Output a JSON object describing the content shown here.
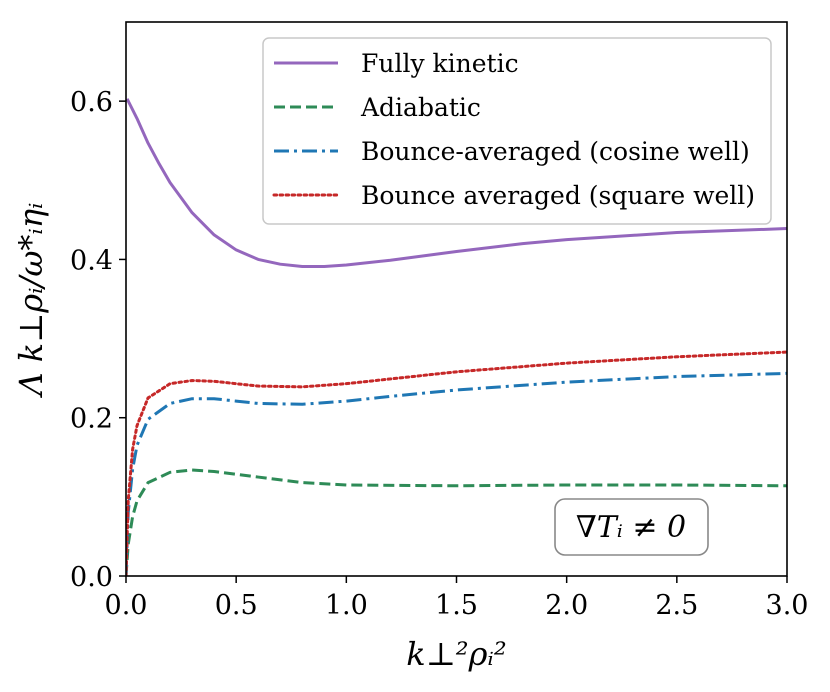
{
  "chart_data": {
    "type": "line",
    "title": "",
    "xlabel": "k⊥²ρᵢ²",
    "ylabel": "Λ k⊥ρᵢ/ω*ᵢηᵢ",
    "xlim": [
      0.0,
      3.0
    ],
    "ylim": [
      0.0,
      0.7
    ],
    "xticks": [
      "0.0",
      "0.5",
      "1.0",
      "1.5",
      "2.0",
      "2.5",
      "3.0"
    ],
    "yticks": [
      "0.0",
      "0.2",
      "0.4",
      "0.6"
    ],
    "grid": false,
    "legend_position": "top-right",
    "annotation": "∇Tᵢ ≠ 0",
    "series": [
      {
        "name": "Fully kinetic",
        "color": "#9467bd",
        "style": "solid",
        "x": [
          0.005,
          0.05,
          0.1,
          0.15,
          0.2,
          0.3,
          0.4,
          0.5,
          0.6,
          0.7,
          0.8,
          0.9,
          1.0,
          1.2,
          1.5,
          1.8,
          2.0,
          2.5,
          3.0
        ],
        "y": [
          0.603,
          0.578,
          0.547,
          0.521,
          0.497,
          0.459,
          0.431,
          0.412,
          0.4,
          0.394,
          0.391,
          0.391,
          0.393,
          0.399,
          0.41,
          0.42,
          0.425,
          0.434,
          0.439
        ]
      },
      {
        "name": "Adiabatic",
        "color": "#2e8b57",
        "style": "dashed",
        "x": [
          0.0,
          0.01,
          0.03,
          0.05,
          0.1,
          0.2,
          0.3,
          0.4,
          0.6,
          0.8,
          1.0,
          1.5,
          2.0,
          2.5,
          3.0
        ],
        "y": [
          0.0,
          0.04,
          0.075,
          0.095,
          0.118,
          0.131,
          0.134,
          0.132,
          0.125,
          0.118,
          0.115,
          0.114,
          0.115,
          0.115,
          0.114
        ]
      },
      {
        "name": "Bounce-averaged (cosine well)",
        "color": "#1f77b4",
        "style": "dashdot",
        "x": [
          0.0,
          0.01,
          0.03,
          0.05,
          0.1,
          0.2,
          0.3,
          0.4,
          0.5,
          0.6,
          0.8,
          1.0,
          1.2,
          1.5,
          2.0,
          2.5,
          3.0
        ],
        "y": [
          0.0,
          0.08,
          0.135,
          0.165,
          0.198,
          0.218,
          0.224,
          0.224,
          0.221,
          0.218,
          0.217,
          0.221,
          0.227,
          0.235,
          0.245,
          0.252,
          0.256
        ]
      },
      {
        "name": "Bounce averaged (square well)",
        "color": "#c62828",
        "style": "dotted",
        "x": [
          0.0,
          0.01,
          0.03,
          0.05,
          0.1,
          0.2,
          0.3,
          0.4,
          0.5,
          0.6,
          0.8,
          1.0,
          1.2,
          1.5,
          2.0,
          2.5,
          3.0
        ],
        "y": [
          0.0,
          0.095,
          0.16,
          0.19,
          0.225,
          0.243,
          0.247,
          0.246,
          0.243,
          0.24,
          0.239,
          0.243,
          0.249,
          0.258,
          0.269,
          0.277,
          0.283
        ]
      }
    ]
  }
}
